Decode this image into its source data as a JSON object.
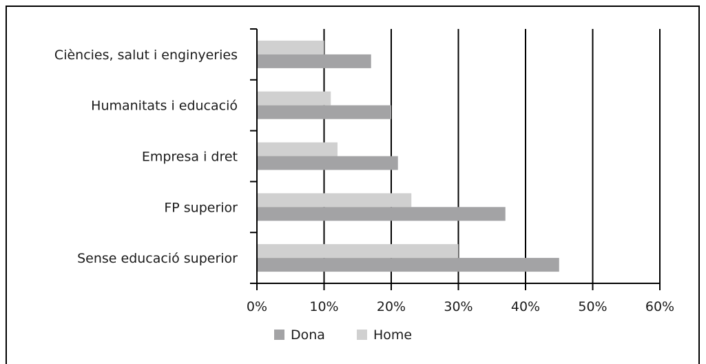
{
  "chart_data": {
    "type": "bar",
    "orientation": "horizontal",
    "categories": [
      "Ciències, salut i enginyeries",
      "Humanitats i educació",
      "Empresa i dret",
      "FP superior ",
      "Sense educació superior"
    ],
    "series": [
      {
        "name": "Home",
        "color": "#d0d0d0",
        "values": [
          10,
          11,
          12,
          23,
          30
        ]
      },
      {
        "name": "Dona",
        "color": "#a3a3a5",
        "values": [
          17,
          20,
          21,
          37,
          45
        ]
      }
    ],
    "xlim": [
      0,
      60
    ],
    "xticks": [
      0,
      10,
      20,
      30,
      40,
      50,
      60
    ],
    "tick_suffix": "%",
    "grid": "vertical",
    "legend_order": [
      "Dona",
      "Home"
    ],
    "legend_placement": "bottom"
  }
}
